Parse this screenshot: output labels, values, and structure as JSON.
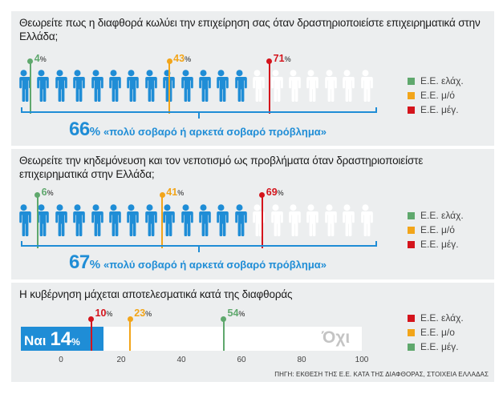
{
  "colors": {
    "person_blue": "#1f8dd6",
    "person_white": "#ffffff",
    "small": "#5fa86d",
    "medium": "#f2a51a",
    "large": "#d4141c",
    "bar_blue": "#1f8dd6",
    "bar_white": "#ffffff"
  },
  "panel1": {
    "question": "Θεωρείτε πως η διαφθορά κωλύει την επιχείρηση σας όταν δραστηριοποιείστε επιχειρηματικά στην Ελλάδα;",
    "summary_value": "66",
    "summary_pct": "%",
    "summary_text": "«πολύ σοβαρό ή αρκετά σοβαρό πρόβλημα»"
  },
  "panel2": {
    "question": "Θεωρείτε την κηδεμόνευση και τον νεποτισμό ως προβλήματα όταν δραστηριοποιείστε επιχειρηματικά στην Ελλάδα;",
    "summary_value": "67",
    "summary_pct": "%",
    "summary_text": "«πολύ σοβαρό ή αρκετά σοβαρό πρόβλημα»"
  },
  "panel3": {
    "question": "Η κυβέρνηση μάχεται αποτελεσματικά κατά της διαφθοράς",
    "yes_label": "Ναι",
    "yes_value": "14",
    "yes_pct": "%",
    "no_label": "Όχι"
  },
  "source": "ΠΗΓΗ: ΕΚΘΕΣΗ ΤΗΣ Ε.Ε. ΚΑΤΑ ΤΗΣ ΔΙΑΦΘΟΡΑΣ, ΣΤΟΙΧΕΙΑ ΕΛΛΑΔΑΣ",
  "chart_data": [
    {
      "type": "bar",
      "title": "Θεωρείτε πως η διαφθορά κωλύει την επιχείρηση σας όταν δραστηριοποιείστε επιχειρηματικά στην Ελλάδα;",
      "total_percent": 66,
      "icons": 20,
      "series": [
        {
          "name": "Ε.Ε. ελάχ.",
          "value": 4,
          "color": "#5fa86d"
        },
        {
          "name": "Ε.Ε. μ/ό",
          "value": 43,
          "color": "#f2a51a"
        },
        {
          "name": "Ε.Ε. μέγ.",
          "value": 71,
          "color": "#d4141c"
        }
      ],
      "value_labels": [
        "4%",
        "43%",
        "71%"
      ],
      "legend": [
        "Ε.Ε. ελάχ.",
        "Ε.Ε. μ/ό",
        "Ε.Ε. μέγ."
      ],
      "legend_position": "right"
    },
    {
      "type": "bar",
      "title": "Θεωρείτε την κηδεμόνευση και τον νεποτισμό ως προβλήματα όταν δραστηριοποιείστε επιχειρηματικά στην Ελλάδα;",
      "total_percent": 67,
      "icons": 20,
      "series": [
        {
          "name": "Ε.Ε. ελάχ.",
          "value": 6,
          "color": "#5fa86d"
        },
        {
          "name": "Ε.Ε. μ/ό",
          "value": 41,
          "color": "#f2a51a"
        },
        {
          "name": "Ε.Ε. μέγ.",
          "value": 69,
          "color": "#d4141c"
        }
      ],
      "value_labels": [
        "6%",
        "41%",
        "69%"
      ],
      "legend": [
        "Ε.Ε. ελάχ.",
        "Ε.Ε. μ/ό",
        "Ε.Ε. μέγ."
      ],
      "legend_position": "right"
    },
    {
      "type": "bar",
      "title": "Η κυβέρνηση μάχεται αποτελεσματικά κατά της διαφθοράς",
      "value": 14,
      "xlim": [
        0,
        100
      ],
      "ticks": [
        0,
        20,
        40,
        60,
        80,
        100
      ],
      "series": [
        {
          "name": "Ε.Ε. ελάχ.",
          "value": 10,
          "color": "#d4141c"
        },
        {
          "name": "Ε.Ε. μ/ο",
          "value": 23,
          "color": "#f2a51a"
        },
        {
          "name": "Ε.Ε. μέγ.",
          "value": 54,
          "color": "#5fa86d"
        }
      ],
      "value_labels": [
        "10%",
        "23%",
        "54%"
      ],
      "legend": [
        "Ε.Ε. ελάχ.",
        "Ε.Ε. μ/ο",
        "Ε.Ε. μέγ."
      ],
      "legend_position": "right"
    }
  ]
}
